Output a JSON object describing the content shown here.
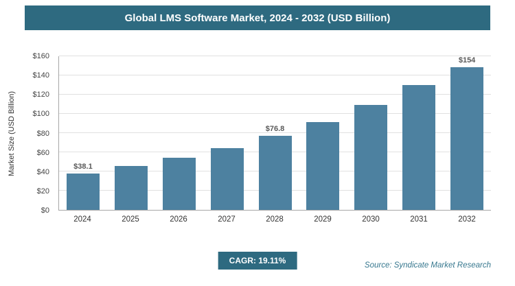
{
  "header": {
    "title": "Global LMS Software Market, 2024 - 2032 (USD Billion)"
  },
  "chart_data": {
    "type": "bar",
    "title": "Global LMS Software Market, 2024 - 2032 (USD Billion)",
    "categories": [
      "2024",
      "2025",
      "2026",
      "2027",
      "2028",
      "2029",
      "2030",
      "2031",
      "2032"
    ],
    "values": [
      38.1,
      45.4,
      54.1,
      64.4,
      76.8,
      91.5,
      109.0,
      129.8,
      154
    ],
    "data_labels": {
      "2024": "$38.1",
      "2028": "$76.8",
      "2032": "$154"
    },
    "xlabel": "",
    "ylabel": "Market Size (USD Billion)",
    "ylim": [
      0,
      160
    ],
    "ytick_step": 20,
    "ytick_prefix": "$",
    "grid": true,
    "legend": "none",
    "bar_color": "#4d81a0"
  },
  "colors": {
    "header_bg": "#2e6a80",
    "bar": "#4d81a0",
    "accent_text": "#36778e"
  },
  "footer": {
    "cagr_label": "CAGR: 19.11%",
    "source": "Source: Syndicate Market Research"
  }
}
